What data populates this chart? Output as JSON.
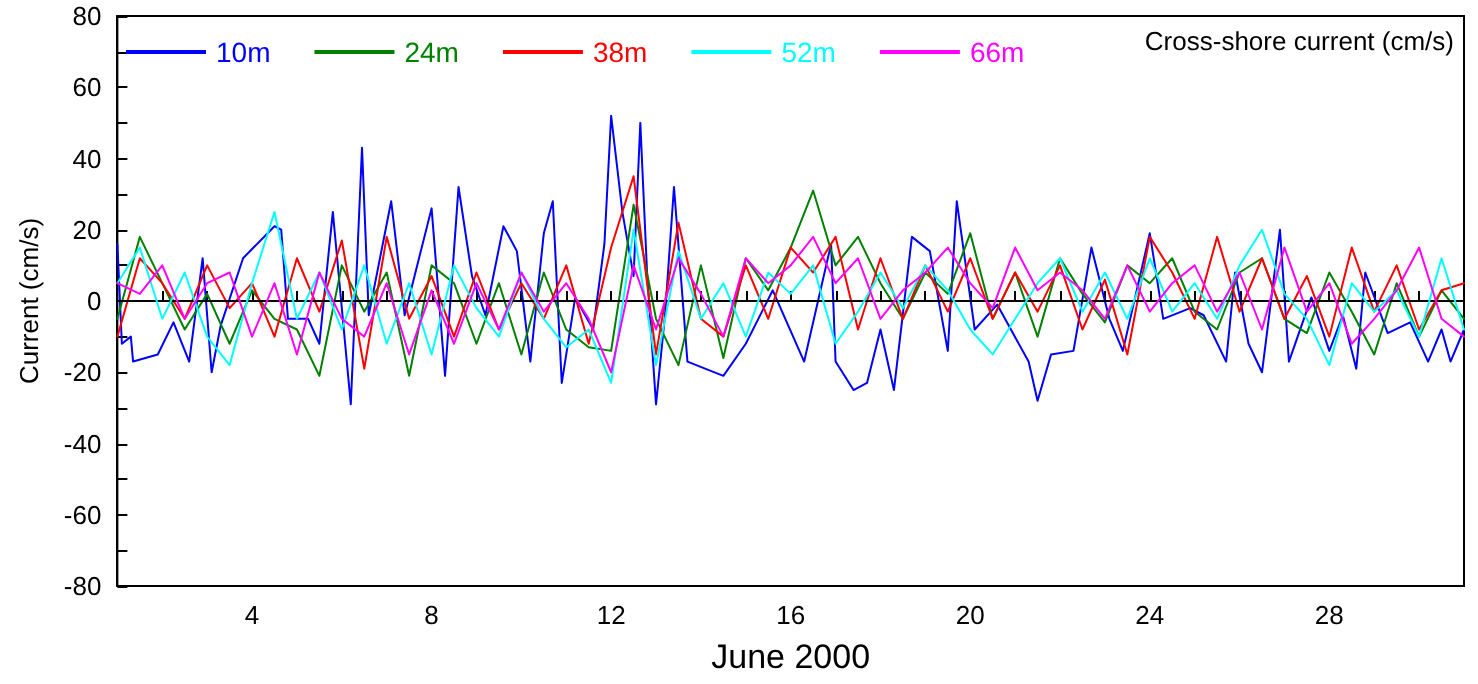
{
  "chart_data": {
    "type": "line",
    "xlabel": "June 2000",
    "ylabel": "Current (cm/s)",
    "annotations": [
      "Cross-shore current (cm/s)"
    ],
    "xlim": [
      1,
      31
    ],
    "ylim": [
      -80,
      80
    ],
    "xticks": [
      {
        "value": 2,
        "label": null
      },
      {
        "value": 3,
        "label": null
      },
      4,
      {
        "value": 5,
        "label": null
      },
      {
        "value": 6,
        "label": null
      },
      {
        "value": 7,
        "label": null
      },
      8,
      {
        "value": 9,
        "label": null
      },
      {
        "value": 10,
        "label": null
      },
      {
        "value": 11,
        "label": null
      },
      12,
      {
        "value": 13,
        "label": null
      },
      {
        "value": 14,
        "label": null
      },
      {
        "value": 15,
        "label": null
      },
      16,
      {
        "value": 17,
        "label": null
      },
      {
        "value": 18,
        "label": null
      },
      {
        "value": 19,
        "label": null
      },
      20,
      {
        "value": 21,
        "label": null
      },
      {
        "value": 22,
        "label": null
      },
      {
        "value": 23,
        "label": null
      },
      24,
      {
        "value": 25,
        "label": null
      },
      {
        "value": 26,
        "label": null
      },
      {
        "value": 27,
        "label": null
      },
      28,
      {
        "value": 29,
        "label": null
      },
      {
        "value": 30,
        "label": null
      }
    ],
    "yticks": [
      -80,
      {
        "value": -70,
        "label": null
      },
      -60,
      {
        "value": -50,
        "label": null
      },
      -40,
      {
        "value": -30,
        "label": null
      },
      -20,
      {
        "value": -10,
        "label": null
      },
      0,
      {
        "value": 10,
        "label": null
      },
      20,
      {
        "value": 30,
        "label": null
      },
      40,
      {
        "value": 50,
        "label": null
      },
      60,
      {
        "value": 70,
        "label": null
      },
      80
    ],
    "grid": false,
    "legend": "top left",
    "marker": "none",
    "line_style": "solid",
    "ref_lines": [
      {
        "axis": "y",
        "value": 0,
        "color": "#000000"
      }
    ],
    "series": [
      {
        "name": "10m",
        "color": "#0000ff",
        "x": [
          1.0,
          1.1,
          1.3,
          1.35,
          1.9,
          2.25,
          2.6,
          2.9,
          3.1,
          3.3,
          3.8,
          4.5,
          4.65,
          4.8,
          5.25,
          5.5,
          5.8,
          6.2,
          6.45,
          6.6,
          7.1,
          7.4,
          8.0,
          8.3,
          8.6,
          8.9,
          9.2,
          9.6,
          9.9,
          10.2,
          10.5,
          10.7,
          10.9,
          11.2,
          11.6,
          11.85,
          12.0,
          12.25,
          12.5,
          12.65,
          12.8,
          13.0,
          13.2,
          13.4,
          13.7,
          14.5,
          15.0,
          15.6,
          16.3,
          16.9,
          17.0,
          17.4,
          17.7,
          18.0,
          18.3,
          18.7,
          19.1,
          19.5,
          19.7,
          20.1,
          20.6,
          21.3,
          21.5,
          21.8,
          22.3,
          22.7,
          23.1,
          23.4,
          24.0,
          24.3,
          24.9,
          25.2,
          25.7,
          25.9,
          26.2,
          26.5,
          26.9,
          27.1,
          27.6,
          28.0,
          28.3,
          28.6,
          28.8,
          29.3,
          29.8,
          30.2,
          30.5,
          30.7,
          31.0
        ],
        "values": [
          16,
          -12,
          -10,
          -17,
          -15,
          -6,
          -17,
          12,
          -20,
          -7,
          12,
          21,
          20,
          -5,
          -5,
          -12,
          25,
          -29,
          43,
          -4,
          28,
          -4,
          26,
          -21,
          32,
          7,
          -4,
          21,
          14,
          -17,
          19,
          28,
          -23,
          1,
          -8,
          16,
          52,
          25,
          7,
          50,
          8,
          -29,
          -4,
          32,
          -17,
          -21,
          -12,
          3,
          -17,
          16,
          -17,
          -25,
          -23,
          -8,
          -25,
          18,
          14,
          -14,
          28,
          -8,
          -1,
          -17,
          -28,
          -15,
          -14,
          15,
          -5,
          -14,
          19,
          -5,
          -2,
          -4,
          -17,
          8,
          -12,
          -20,
          20,
          -17,
          1,
          -14,
          -4,
          -19,
          8,
          -9,
          -6,
          -17,
          -8,
          -17,
          -8
        ]
      },
      {
        "name": "24m",
        "color": "#008000",
        "values": [
          -5,
          18,
          5,
          -8,
          2,
          -12,
          3,
          -5,
          -8,
          -21,
          10,
          -3,
          8,
          -21,
          10,
          5,
          -12,
          5,
          -15,
          8,
          -8,
          -13,
          -14,
          27,
          -5,
          -18,
          10,
          -16,
          12,
          3,
          15,
          31,
          10,
          18,
          5,
          -5,
          8,
          2,
          19,
          -5,
          8,
          -10,
          12,
          2,
          -6,
          10,
          5,
          12,
          -3,
          -8,
          8,
          12,
          -5,
          -9,
          8,
          -3,
          -15,
          5,
          -10,
          3,
          -5
        ]
      },
      {
        "name": "38m",
        "color": "#ff0000",
        "values": [
          -10,
          12,
          5,
          -5,
          10,
          -2,
          5,
          -10,
          12,
          -3,
          17,
          -19,
          18,
          -5,
          7,
          -10,
          8,
          -8,
          5,
          -5,
          10,
          -12,
          15,
          35,
          -15,
          22,
          -5,
          -10,
          10,
          -5,
          15,
          8,
          18,
          -8,
          12,
          -5,
          10,
          -3,
          12,
          -5,
          8,
          -3,
          10,
          -8,
          6,
          -15,
          18,
          8,
          -5,
          18,
          -3,
          12,
          -5,
          7,
          -10,
          15,
          -3,
          10,
          -8,
          3,
          5
        ]
      },
      {
        "name": "52m",
        "color": "#00ffff",
        "values": [
          5,
          15,
          -5,
          8,
          -10,
          -18,
          5,
          25,
          -5,
          8,
          -8,
          10,
          -12,
          5,
          -15,
          10,
          -2,
          -10,
          8,
          -5,
          -13,
          -8,
          -23,
          20,
          -18,
          14,
          -5,
          5,
          -10,
          8,
          2,
          10,
          -12,
          -3,
          8,
          -2,
          10,
          3,
          -8,
          -15,
          -5,
          5,
          12,
          -3,
          8,
          -5,
          12,
          -3,
          5,
          -5,
          10,
          20,
          2,
          -5,
          -18,
          5,
          -3,
          3,
          -10,
          12,
          -8
        ]
      },
      {
        "name": "66m",
        "color": "#ff00ff",
        "values": [
          5,
          2,
          10,
          -5,
          5,
          8,
          -10,
          5,
          -15,
          8,
          -5,
          -10,
          5,
          -15,
          3,
          -12,
          5,
          -8,
          8,
          -3,
          5,
          -5,
          -20,
          10,
          -8,
          12,
          2,
          -10,
          12,
          5,
          10,
          18,
          5,
          12,
          -5,
          3,
          8,
          15,
          5,
          -2,
          15,
          3,
          8,
          3,
          -5,
          10,
          -3,
          5,
          10,
          -3,
          8,
          -8,
          15,
          -3,
          5,
          -12,
          -5,
          3,
          15,
          -5,
          -10
        ]
      }
    ],
    "x": [
      1.0,
      1.5,
      2.0,
      2.5,
      3.0,
      3.5,
      4.0,
      4.5,
      5.0,
      5.5,
      6.0,
      6.5,
      7.0,
      7.5,
      8.0,
      8.5,
      9.0,
      9.5,
      10.0,
      10.5,
      11.0,
      11.5,
      12.0,
      12.5,
      13.0,
      13.5,
      14.0,
      14.5,
      15.0,
      15.5,
      16.0,
      16.5,
      17.0,
      17.5,
      18.0,
      18.5,
      19.0,
      19.5,
      20.0,
      20.5,
      21.0,
      21.5,
      22.0,
      22.5,
      23.0,
      23.5,
      24.0,
      24.5,
      25.0,
      25.5,
      26.0,
      26.5,
      27.0,
      27.5,
      28.0,
      28.5,
      29.0,
      29.5,
      30.0,
      30.5,
      31.0
    ]
  }
}
